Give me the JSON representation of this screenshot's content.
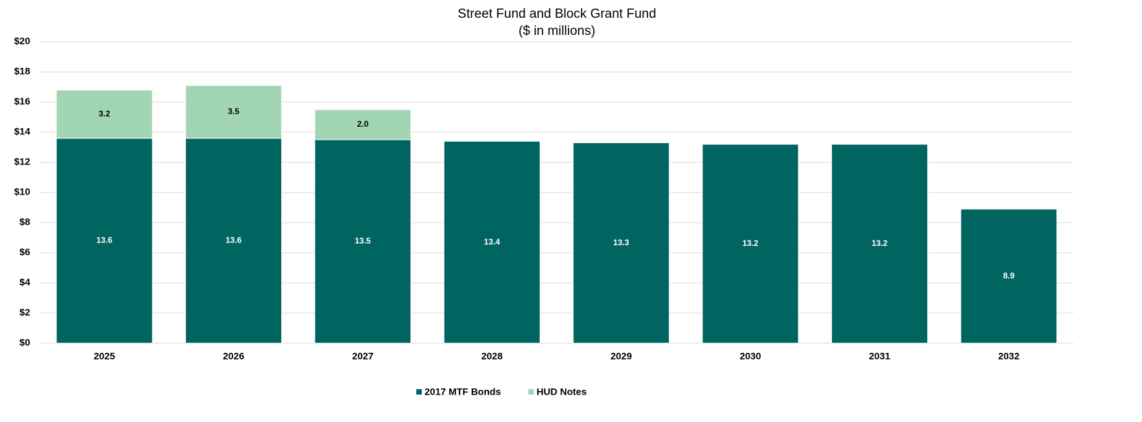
{
  "chart_data": {
    "type": "stacked_bar",
    "title": "Street Fund and Block Grant Fund",
    "subtitle": "($ in millions)",
    "categories": [
      "2025",
      "2026",
      "2027",
      "2028",
      "2029",
      "2030",
      "2031",
      "2032"
    ],
    "series": [
      {
        "name": "2017 MTF Bonds",
        "color": "#006461",
        "values": [
          13.6,
          13.6,
          13.5,
          13.4,
          13.3,
          13.2,
          13.2,
          8.9
        ]
      },
      {
        "name": "HUD Notes",
        "color": "#a2d6b3",
        "values": [
          3.2,
          3.5,
          2.0,
          null,
          null,
          null,
          null,
          null
        ],
        "value_labels": [
          "3.2",
          "3.5",
          "2.0",
          null,
          null,
          null,
          null,
          null
        ]
      }
    ],
    "ylim": [
      0,
      20
    ],
    "yticks": [
      {
        "value": 0,
        "label": "$0"
      },
      {
        "value": 2,
        "label": "$2"
      },
      {
        "value": 4,
        "label": "$4"
      },
      {
        "value": 6,
        "label": "$6"
      },
      {
        "value": 8,
        "label": "$8"
      },
      {
        "value": 10,
        "label": "$10"
      },
      {
        "value": 12,
        "label": "$12"
      },
      {
        "value": 14,
        "label": "$14"
      },
      {
        "value": 16,
        "label": "$16"
      },
      {
        "value": 18,
        "label": "$18"
      },
      {
        "value": 20,
        "label": "$20"
      }
    ],
    "grid": true,
    "legend": "bottom"
  }
}
